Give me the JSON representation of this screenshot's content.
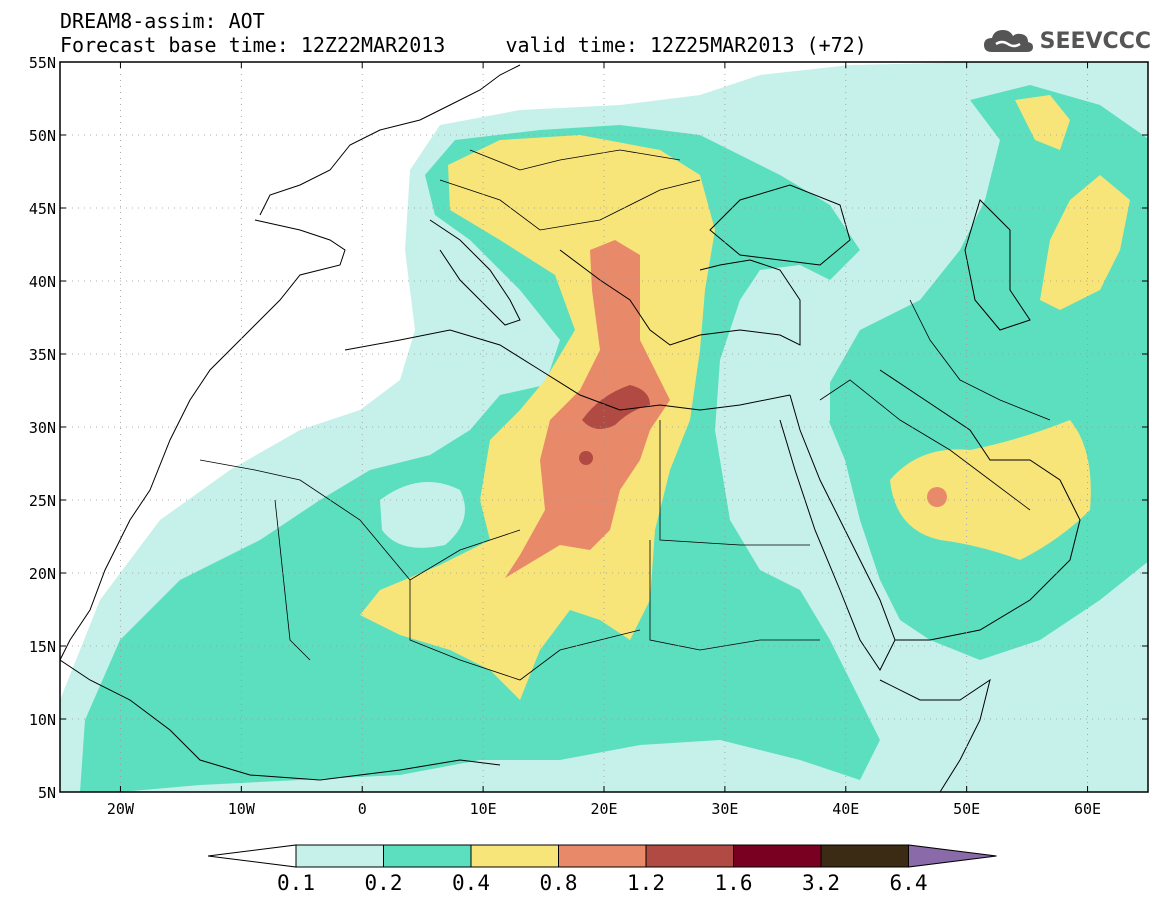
{
  "header": {
    "title": "DREAM8-assim: AOT",
    "subtitle": "Forecast base time: 12Z22MAR2013     valid time: 12Z25MAR2013 (+72)"
  },
  "logo": {
    "text": "SEEVCCC",
    "icon": "cloud-icon"
  },
  "map": {
    "lon_range": [
      -25,
      65
    ],
    "lat_range": [
      5,
      55
    ],
    "lat_ticks": [
      "5N",
      "10N",
      "15N",
      "20N",
      "25N",
      "30N",
      "35N",
      "40N",
      "45N",
      "50N",
      "55N"
    ],
    "lon_ticks": [
      "20W",
      "10W",
      "0",
      "10E",
      "20E",
      "30E",
      "40E",
      "50E",
      "60E"
    ],
    "grid": true
  },
  "legend": {
    "labels": [
      "0.1",
      "0.2",
      "0.4",
      "0.8",
      "1.2",
      "1.6",
      "3.2",
      "6.4"
    ],
    "colors": [
      "#c5f1ea",
      "#5bdfbe",
      "#f7e57a",
      "#e88a6a",
      "#b04a42",
      "#7a0021",
      "#3b2a14"
    ],
    "under_color": "#ffffff",
    "over_color": "#8a6aa8"
  }
}
